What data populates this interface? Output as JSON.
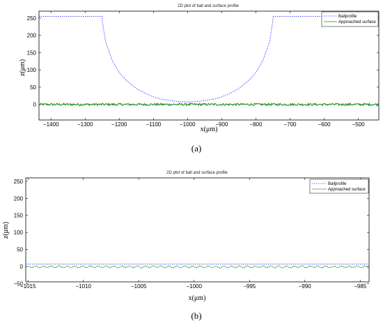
{
  "chart_data": [
    {
      "type": "line",
      "title": "2D plot of ball and surface profile",
      "xlabel": "x(μm)",
      "ylabel": "z(μm)",
      "xlim": [
        -1435,
        -440
      ],
      "ylim": [
        -45,
        270
      ],
      "xticks": [
        -1400,
        -1300,
        -1200,
        -1100,
        -1000,
        -900,
        -800,
        -700,
        -600,
        -500
      ],
      "yticks": [
        0,
        50,
        100,
        150,
        200,
        250
      ],
      "caption": "(a)",
      "legend_position": "top-right",
      "series": [
        {
          "name": "Ballprofile",
          "style": "dotted",
          "color": "#3b3bff",
          "x": [
            -1435,
            -1250,
            -1250,
            -1240,
            -1220,
            -1200,
            -1180,
            -1150,
            -1120,
            -1100,
            -1080,
            -1050,
            -1020,
            -1000,
            -980,
            -950,
            -920,
            -900,
            -880,
            -850,
            -820,
            -800,
            -780,
            -760,
            -750,
            -750,
            -440
          ],
          "y": [
            255,
            255,
            245,
            180,
            126,
            92,
            70,
            46,
            30,
            22,
            16,
            11,
            8,
            7,
            8,
            11,
            16,
            22,
            30,
            46,
            70,
            92,
            126,
            180,
            245,
            255,
            255
          ]
        },
        {
          "name": "Approached surface",
          "style": "solid",
          "color": "#1a8a1a",
          "x": [
            -1435,
            -440
          ],
          "y": [
            0,
            0
          ],
          "noise_amplitude": 4
        }
      ]
    },
    {
      "type": "line",
      "title": "2D plot of ball and surface profile",
      "xlabel": "x(μm)",
      "ylabel": "z(μm)",
      "xlim": [
        -1015.2,
        -984.2
      ],
      "ylim": [
        -45,
        260
      ],
      "xticks": [
        -1015,
        -1010,
        -1005,
        -1000,
        -995,
        -990,
        -985
      ],
      "yticks": [
        -50,
        0,
        50,
        100,
        150,
        200,
        250
      ],
      "caption": "(b)",
      "legend_position": "top-right",
      "series": [
        {
          "name": "Ballprofile",
          "style": "dotted",
          "color": "#3b3bff",
          "x": [
            -1015.2,
            -984.2
          ],
          "y": [
            7,
            7
          ]
        },
        {
          "name": "Approached surface",
          "style": "solid",
          "color": "#3aa03a",
          "x": [
            -1015.2,
            -984.2
          ],
          "y": [
            -1,
            -1
          ],
          "noise_amplitude": 3
        }
      ]
    }
  ]
}
